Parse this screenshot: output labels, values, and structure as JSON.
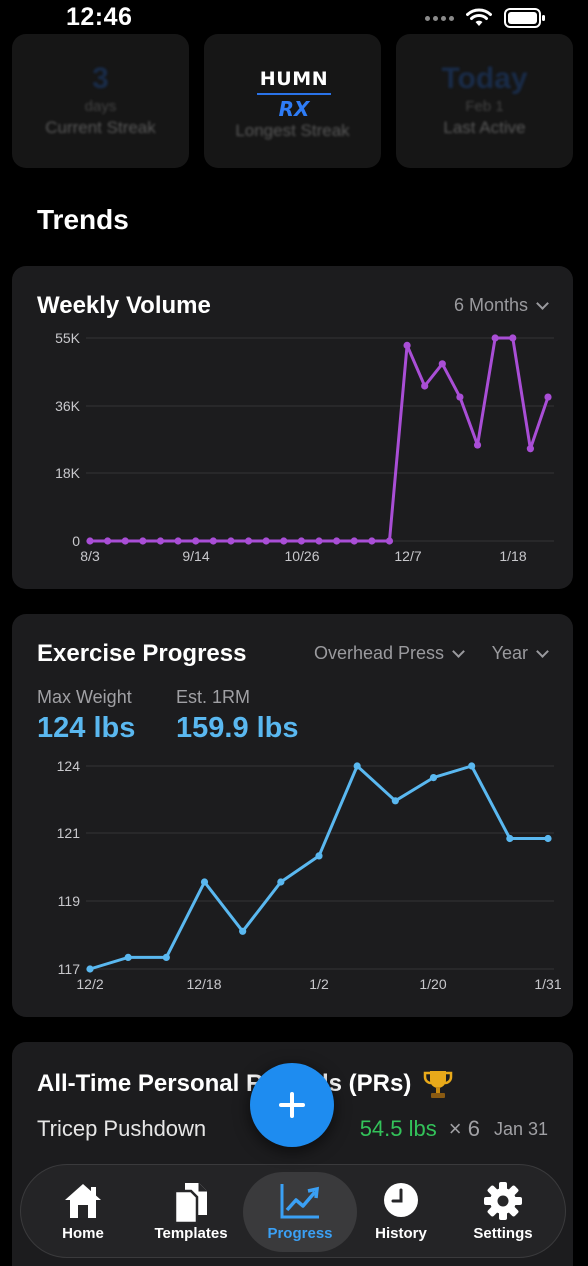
{
  "status_bar": {
    "time": "12:46"
  },
  "stats": [
    {
      "value": "3",
      "unit": "days",
      "label": "Current Streak"
    },
    {
      "value": "",
      "unit": "",
      "label": "Longest Streak"
    },
    {
      "value": "Today",
      "unit": "Feb 1",
      "label": "Last Active"
    }
  ],
  "logo": {
    "top": "HUMN",
    "bottom": "RX"
  },
  "trends_title": "Trends",
  "weekly_volume": {
    "title": "Weekly Volume",
    "range": "6 Months"
  },
  "exercise_progress": {
    "title": "Exercise Progress",
    "exercise": "Overhead Press",
    "range": "Year",
    "max_weight_label": "Max Weight",
    "max_weight_value": "124 lbs",
    "est_1rm_label": "Est. 1RM",
    "est_1rm_value": "159.9 lbs"
  },
  "chart_data": [
    {
      "type": "line",
      "color": "#a94ed6",
      "x_tick_labels": [
        "8/3",
        "9/14",
        "10/26",
        "12/7",
        "1/18"
      ],
      "y_tick_labels": [
        "0",
        "18K",
        "36K",
        "55K"
      ],
      "ylim": [
        0,
        55000
      ],
      "grid": true,
      "series": [
        {
          "values": [
            0,
            0,
            0,
            0,
            0,
            0,
            0,
            0,
            0,
            0,
            0,
            0,
            0,
            0,
            0,
            0,
            0,
            0,
            53000,
            42000,
            48000,
            39000,
            26000,
            55000,
            55000,
            25000,
            39000
          ]
        }
      ]
    },
    {
      "type": "line",
      "color": "#5ab8f0",
      "x_tick_labels": [
        "12/2",
        "12/18",
        "1/2",
        "1/20",
        "1/31"
      ],
      "y_tick_labels": [
        "117",
        "119",
        "121",
        "124"
      ],
      "ylim": [
        117,
        124
      ],
      "grid": true,
      "series": [
        {
          "values": [
            117,
            117.4,
            117.4,
            120,
            118.3,
            120,
            120.9,
            124,
            122.8,
            123.6,
            124,
            121.5,
            121.5
          ]
        }
      ]
    }
  ],
  "personal_records": {
    "title": "All-Time Personal Records (PRs)",
    "rows": [
      {
        "exercise": "Tricep Pushdown",
        "weight": "54.5 lbs",
        "reps": "× 6",
        "date": "Jan 31"
      }
    ]
  },
  "tabs": [
    {
      "label": "Home",
      "icon": "home-icon"
    },
    {
      "label": "Templates",
      "icon": "templates-icon"
    },
    {
      "label": "Progress",
      "icon": "progress-icon"
    },
    {
      "label": "History",
      "icon": "history-icon"
    },
    {
      "label": "Settings",
      "icon": "settings-icon"
    }
  ]
}
